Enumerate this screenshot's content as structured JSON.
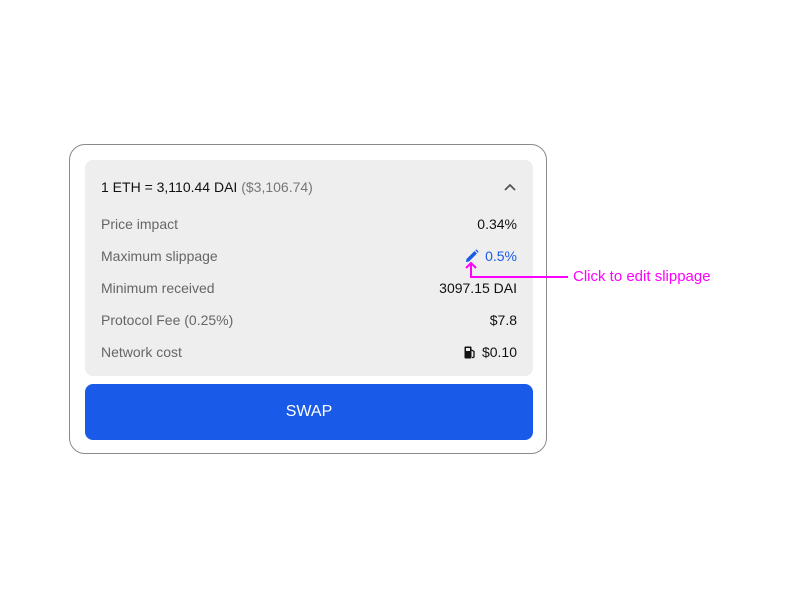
{
  "summary": {
    "rate": "1 ETH = 3,110.44 DAI",
    "rate_usd": "($3,106.74)",
    "collapse_icon": "chevron-up-icon"
  },
  "details": [
    {
      "label": "Price impact",
      "value": "0.34%"
    },
    {
      "label": "Maximum slippage",
      "value": "0.5%",
      "icon": "pencil-icon",
      "color": "#1a5ae8"
    },
    {
      "label": "Minimum received",
      "value": "3097.15 DAI"
    },
    {
      "label": "Protocol Fee (0.25%)",
      "value": "$7.8"
    },
    {
      "label": "Network cost",
      "value": "$0.10",
      "icon": "gas-pump-icon"
    }
  ],
  "swap_button": {
    "label": "SWAP",
    "color": "#1a5ae8"
  },
  "annotation": {
    "text": "Click to edit slippage",
    "color": "#ff00ff"
  }
}
